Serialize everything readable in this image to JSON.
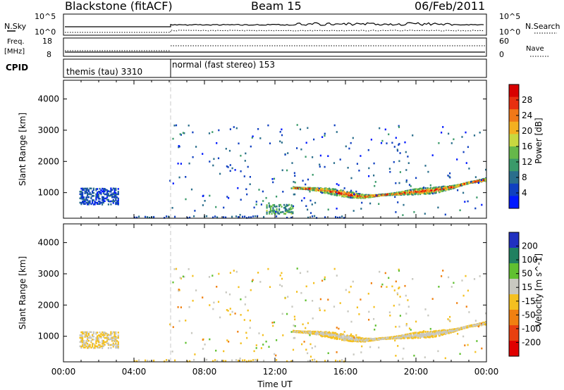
{
  "header": {
    "station": "Blackstone (fitACF)",
    "beam": "Beam 15",
    "date": "06/Feb/2011"
  },
  "top_panels": {
    "nsky_label": "N.Sky",
    "nsky_ticks": [
      "10^5",
      "10^0"
    ],
    "nsearch_label": "N.Search",
    "nsearch_ticks": [
      "10^5",
      "10^0"
    ],
    "freq_label_line1": "Freq.",
    "freq_label_line2": "[MHz]",
    "freq_ticks": [
      "18",
      "8"
    ],
    "nave_label": "Nave",
    "nave_ticks": [
      "60",
      "0"
    ],
    "cpid_label": "CPID",
    "cpid_segments": [
      {
        "label": "themis (tau) 3310",
        "start_hour": 0,
        "end_hour": 6
      },
      {
        "label": "normal (fast stereo) 153",
        "start_hour": 6,
        "end_hour": 24
      }
    ]
  },
  "chart_data": [
    {
      "type": "heatmap",
      "panel": "power",
      "ylabel": "Slant Range [km]",
      "xlabel": "",
      "xlim": [
        0,
        24
      ],
      "ylim": [
        180,
        4600
      ],
      "yticks": [
        "1000",
        "2000",
        "3000",
        "4000"
      ],
      "colorbar": {
        "label": "Power [dB]",
        "ticks": [
          "4",
          "8",
          "12",
          "16",
          "20",
          "24",
          "28"
        ],
        "range": [
          0,
          30
        ],
        "colors": [
          "#0018ff",
          "#1040c0",
          "#2a6e8c",
          "#3a9a6a",
          "#66b84a",
          "#c8d840",
          "#f4b020",
          "#f07818",
          "#e83010",
          "#d80000"
        ]
      },
      "regions": [
        {
          "name": "themis-echo",
          "t_start": 0.9,
          "t_end": 3.1,
          "r_start": 650,
          "r_end": 1180,
          "value_range": [
            2,
            8
          ]
        },
        {
          "name": "main-echo-band",
          "t_start": 13.0,
          "t_end": 24.0,
          "r_center_profile": [
            [
              13,
              1180
            ],
            [
              14,
              1150
            ],
            [
              15,
              1080
            ],
            [
              16,
              980
            ],
            [
              17,
              900
            ],
            [
              18,
              950
            ],
            [
              19,
              1000
            ],
            [
              20,
              1060
            ],
            [
              21,
              1100
            ],
            [
              22,
              1200
            ],
            [
              23,
              1350
            ],
            [
              24,
              1450
            ]
          ],
          "value_range": [
            4,
            28
          ]
        },
        {
          "name": "near-range-echo",
          "t_start": 11.5,
          "t_end": 13.0,
          "r_start": 350,
          "r_end": 650,
          "value_range": [
            6,
            16
          ]
        }
      ]
    },
    {
      "type": "heatmap",
      "panel": "velocity",
      "ylabel": "Slant Range [km]",
      "xlabel": "Time UT",
      "xlim": [
        0,
        24
      ],
      "ylim": [
        180,
        4600
      ],
      "xticks": [
        "00:00",
        "04:00",
        "08:00",
        "12:00",
        "16:00",
        "20:00",
        "00:00"
      ],
      "yticks": [
        "1000",
        "2000",
        "3000",
        "4000"
      ],
      "colorbar": {
        "label": "Velocity [m s^-1]",
        "ticks": [
          "200",
          "100",
          "50",
          "15",
          "-15",
          "-50",
          "-100",
          "-200"
        ],
        "range": [
          -250,
          250
        ],
        "colors": [
          "#2030c0",
          "#208060",
          "#60c030",
          "#c8c8c0",
          "#f4c020",
          "#f08010",
          "#e84010",
          "#e00000"
        ]
      },
      "regions": [
        {
          "name": "themis-echo",
          "t_start": 0.9,
          "t_end": 3.1,
          "r_start": 650,
          "r_end": 1180,
          "value_range": [
            -15,
            15
          ]
        },
        {
          "name": "main-echo-band",
          "t_start": 13.0,
          "t_end": 24.0,
          "r_center_profile": [
            [
              13,
              1180
            ],
            [
              14,
              1150
            ],
            [
              15,
              1080
            ],
            [
              16,
              980
            ],
            [
              17,
              900
            ],
            [
              18,
              950
            ],
            [
              19,
              1000
            ],
            [
              20,
              1060
            ],
            [
              21,
              1100
            ],
            [
              22,
              1200
            ],
            [
              23,
              1350
            ],
            [
              24,
              1450
            ]
          ],
          "value_range": [
            -15,
            15
          ]
        }
      ]
    }
  ]
}
